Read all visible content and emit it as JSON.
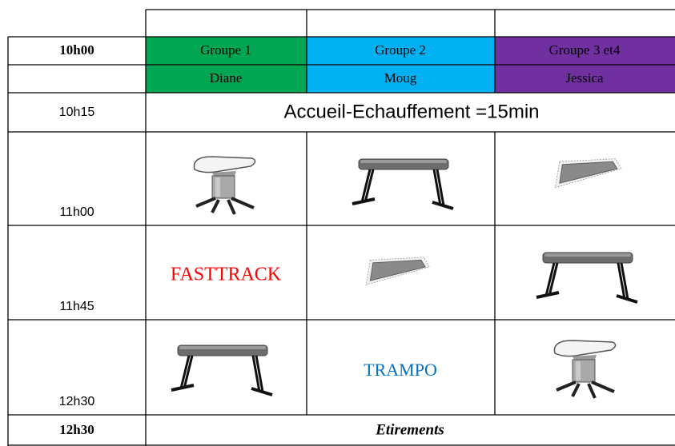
{
  "table": {
    "header": {
      "time": "10h00",
      "groups": [
        "Groupe 1",
        "Groupe 2",
        "Groupe 3 et4"
      ]
    },
    "coaches": [
      "Diane",
      "Moug",
      "Jessica"
    ],
    "warmup": {
      "time": "10h15",
      "label": "Accueil-Echauffement =15min"
    },
    "rotations": [
      {
        "time": "11h00"
      },
      {
        "time": "11h45",
        "label": "FASTTRACK"
      },
      {
        "time": "12h30",
        "label": "TRAMPO"
      }
    ],
    "footer": {
      "time": "12h30",
      "label": "Etirements"
    }
  }
}
